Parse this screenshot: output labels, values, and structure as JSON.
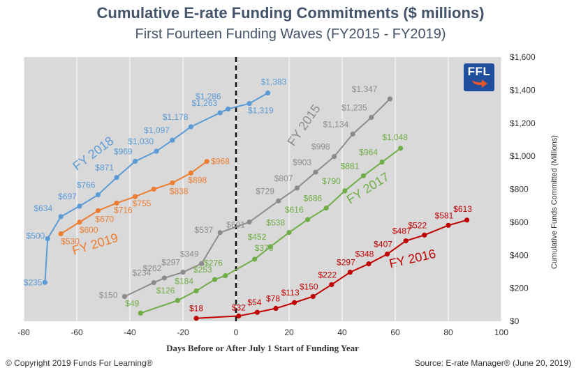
{
  "chart_data": {
    "type": "line",
    "title": "Cumulative E-rate Funding Commitments ($ millions)",
    "subtitle": "First Fourteen Funding Waves (FY2015 - FY2019)",
    "xlabel": "Days Before or After July 1 Start of Funding Year",
    "ylabel": "Cumulative Funds Committed (Millions)",
    "xlim": [
      -80,
      100
    ],
    "ylim": [
      0,
      1600
    ],
    "x_ticks": [
      -80,
      -60,
      -40,
      -20,
      0,
      20,
      40,
      60,
      80,
      100
    ],
    "x_tick_labels": [
      "-80",
      "-60",
      "-40",
      "-20",
      "0",
      "20",
      "40",
      "60",
      "80",
      "100"
    ],
    "y_ticks": [
      0,
      200,
      400,
      600,
      800,
      1000,
      1200,
      1400,
      1600
    ],
    "y_tick_labels": [
      "$0",
      "$200",
      "$400",
      "$600",
      "$800",
      "$1,000",
      "$1,200",
      "$1,400",
      "$1,600"
    ],
    "y_axis_side": "right",
    "grid": "vertical",
    "reference_line_x": 0,
    "series": [
      {
        "name": "FY 2018",
        "color": "#5b9bd5",
        "x": [
          -72,
          -71,
          -66,
          -59,
          -52,
          -45,
          -38,
          -30,
          -24,
          -17,
          -6,
          -3,
          5,
          12
        ],
        "y": [
          235,
          500,
          634,
          697,
          766,
          871,
          969,
          1030,
          1097,
          1178,
          1263,
          1286,
          1319,
          1383
        ],
        "labels": [
          "$235",
          "$500",
          "$634",
          "$697",
          "$766",
          "$871",
          "$969",
          "$1,030",
          "$1,097",
          "$1,178",
          "$1,263",
          "$1,286",
          "$1,319",
          "$1,383"
        ]
      },
      {
        "name": "FY 2019",
        "color": "#ed7d31",
        "x": [
          -66,
          -59,
          -52,
          -45,
          -38,
          -31,
          -24,
          -17,
          -11
        ],
        "y": [
          530,
          600,
          670,
          716,
          755,
          800,
          838,
          898,
          968
        ],
        "labels": [
          "$530",
          "$600",
          "$670",
          "$716",
          "$755",
          "",
          "$838",
          "$898",
          "$968"
        ]
      },
      {
        "name": "FY 2015",
        "color": "#8c8c8c",
        "x": [
          -42,
          -31,
          -27,
          -20,
          -13,
          -6,
          5,
          16,
          23,
          30,
          37,
          44,
          51,
          58
        ],
        "y": [
          150,
          234,
          262,
          297,
          349,
          537,
          601,
          729,
          807,
          903,
          998,
          1134,
          1235,
          1347
        ],
        "labels": [
          "$150",
          "$234",
          "$262",
          "$297",
          "$349",
          "$537",
          "$601",
          "$729",
          "$807",
          "$903",
          "$998",
          "$1,134",
          "$1,235",
          "$1,347"
        ]
      },
      {
        "name": "FY 2017",
        "color": "#70ad47",
        "x": [
          -36,
          -22,
          -15,
          -8,
          -4,
          7,
          13,
          20,
          27,
          34,
          41,
          48,
          55,
          62
        ],
        "y": [
          49,
          126,
          184,
          253,
          276,
          376,
          452,
          538,
          616,
          686,
          790,
          881,
          964,
          1048
        ],
        "labels": [
          "$49",
          "$126",
          "$184",
          "$253",
          "$276",
          "$376",
          "$452",
          "$538",
          "$616",
          "$686",
          "$790",
          "$881",
          "$964",
          "$1,048"
        ]
      },
      {
        "name": "FY 2016",
        "color": "#c00000",
        "x": [
          -15,
          1,
          8,
          15,
          22,
          29,
          36,
          43,
          50,
          57,
          64,
          71,
          80,
          87
        ],
        "y": [
          18,
          32,
          54,
          78,
          113,
          150,
          222,
          297,
          348,
          407,
          487,
          522,
          581,
          613
        ],
        "labels": [
          "$18",
          "$32",
          "$54",
          "$78",
          "$113",
          "$150",
          "$222",
          "$297",
          "$348",
          "$407",
          "$487",
          "$522",
          "$581",
          "$613"
        ]
      }
    ]
  },
  "footer": {
    "copyright": "© Copyright 2019 Funds For Learning®",
    "source": "Source: E-rate Manager® (June 20, 2019)"
  },
  "logo": {
    "text": "FFL"
  }
}
